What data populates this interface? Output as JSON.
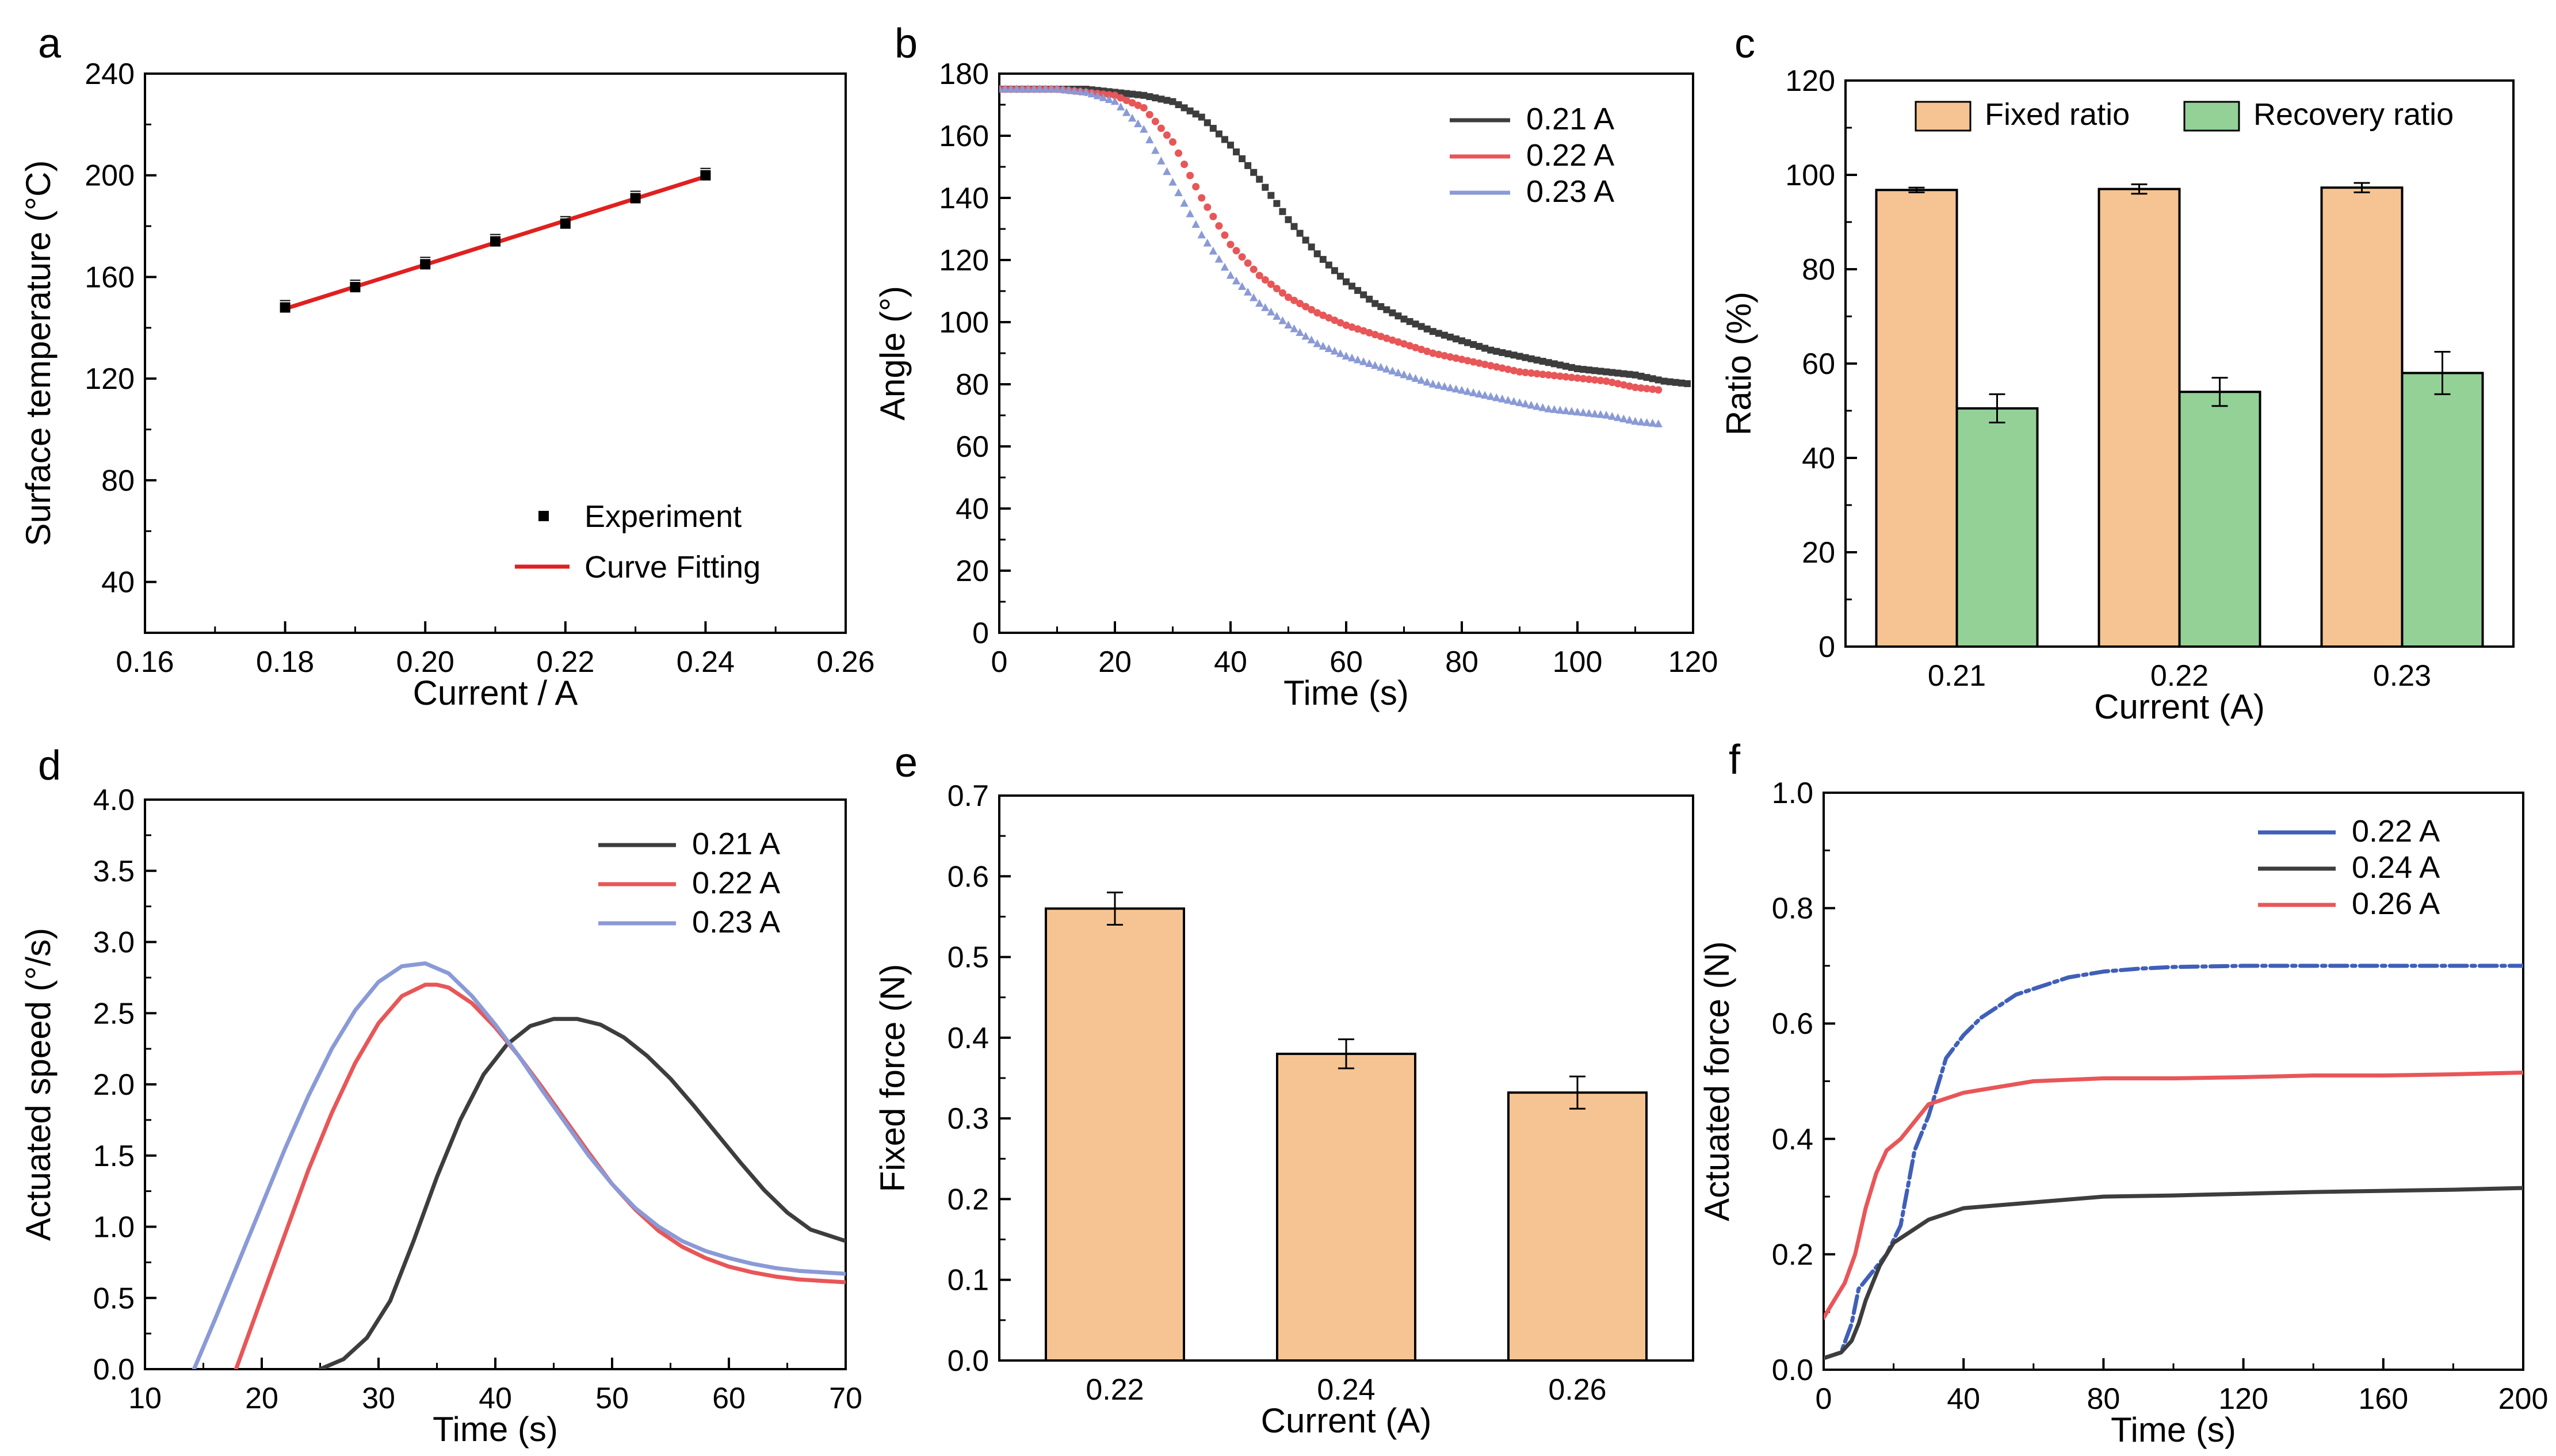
{
  "colors": {
    "black": "#000000",
    "dark": "#3d3d3d",
    "red": "#e85658",
    "blue": "#8a9ad6",
    "blue_f": "#3f5fb8",
    "orange": "#f6c492",
    "green": "#93d197"
  },
  "chart_data": [
    {
      "id": "a",
      "type": "scatter",
      "panel_label": "a",
      "xlabel": "Current / A",
      "ylabel": "Surface temperature  (°C)",
      "xlim": [
        0.16,
        0.26
      ],
      "ylim": [
        20,
        240
      ],
      "xticks": [
        0.16,
        0.18,
        0.2,
        0.22,
        0.24,
        0.26
      ],
      "xtick_labels": [
        "0.16",
        "0.18",
        "0.20",
        "0.22",
        "0.24",
        "0.26"
      ],
      "yticks": [
        40,
        80,
        120,
        160,
        200,
        240
      ],
      "ytick_labels": [
        "40",
        "80",
        "120",
        "160",
        "200",
        "240"
      ],
      "series": [
        {
          "name": "Experiment",
          "mode": "markers",
          "color": "#000000",
          "x": [
            0.18,
            0.19,
            0.2,
            0.21,
            0.22,
            0.23,
            0.24
          ],
          "y": [
            148,
            156,
            165,
            174,
            181,
            191,
            200
          ]
        },
        {
          "name": "Curve Fitting",
          "mode": "line",
          "color": "#e02020",
          "x": [
            0.18,
            0.24
          ],
          "y": [
            147.5,
            199.5
          ]
        }
      ]
    },
    {
      "id": "b",
      "type": "scatter",
      "panel_label": "b",
      "xlabel": "Time (s)",
      "ylabel": "Angle (°)",
      "xlim": [
        0,
        120
      ],
      "ylim": [
        0,
        180
      ],
      "xticks": [
        0,
        20,
        40,
        60,
        80,
        100,
        120
      ],
      "xtick_labels": [
        "0",
        "20",
        "40",
        "60",
        "80",
        "100",
        "120"
      ],
      "yticks": [
        0,
        20,
        40,
        60,
        80,
        100,
        120,
        140,
        160,
        180
      ],
      "ytick_labels": [
        "0",
        "20",
        "40",
        "60",
        "80",
        "100",
        "120",
        "140",
        "160",
        "180"
      ],
      "series": [
        {
          "name": "0.21 A",
          "color": "#3d3d3d",
          "x": [
            0,
            5,
            10,
            15,
            20,
            25,
            30,
            35,
            40,
            45,
            50,
            55,
            60,
            65,
            70,
            75,
            80,
            85,
            90,
            95,
            100,
            105,
            110,
            115,
            120
          ],
          "y": [
            175,
            175,
            175,
            175,
            174,
            173,
            171,
            166,
            157,
            146,
            133,
            122,
            113,
            106,
            101,
            97,
            94,
            91,
            89,
            87,
            85,
            84,
            83,
            81,
            80
          ]
        },
        {
          "name": "0.22 A",
          "color": "#e85658",
          "x": [
            0,
            5,
            10,
            15,
            20,
            25,
            30,
            35,
            40,
            45,
            50,
            55,
            60,
            65,
            70,
            75,
            80,
            85,
            90,
            95,
            100,
            105,
            110,
            115
          ],
          "y": [
            175,
            175,
            175,
            174,
            173,
            169,
            158,
            140,
            125,
            115,
            108,
            103,
            99,
            96,
            93,
            90,
            88,
            86,
            84,
            83,
            82,
            81,
            79,
            78
          ]
        },
        {
          "name": "0.23 A",
          "color": "#8a9ad6",
          "x": [
            0,
            5,
            10,
            15,
            20,
            25,
            30,
            35,
            40,
            45,
            50,
            55,
            60,
            65,
            70,
            75,
            80,
            85,
            90,
            95,
            100,
            105,
            110,
            115
          ],
          "y": [
            175,
            175,
            175,
            174,
            171,
            162,
            145,
            128,
            115,
            106,
            99,
            93,
            89,
            86,
            83,
            80,
            78,
            76,
            74,
            72,
            71,
            70,
            68,
            67
          ]
        }
      ]
    },
    {
      "id": "c",
      "type": "bar",
      "panel_label": "c",
      "xlabel": "Current (A)",
      "ylabel": "Ratio (%)",
      "ylim": [
        0,
        120
      ],
      "yticks": [
        0,
        20,
        40,
        60,
        80,
        100,
        120
      ],
      "ytick_labels": [
        "0",
        "20",
        "40",
        "60",
        "80",
        "100",
        "120"
      ],
      "categories": [
        "0.21",
        "0.22",
        "0.23"
      ],
      "series": [
        {
          "name": "Fixed ratio",
          "color": "#f6c492",
          "values": [
            96.8,
            97,
            97.3
          ],
          "errors": [
            0.5,
            1,
            1
          ]
        },
        {
          "name": "Recovery ratio",
          "color": "#93d197",
          "values": [
            50.5,
            54,
            58
          ],
          "errors": [
            3,
            3,
            4.5
          ]
        }
      ]
    },
    {
      "id": "d",
      "type": "line",
      "panel_label": "d",
      "xlabel": "Time (s)",
      "ylabel": "Actuated speed (°/s)",
      "xlim": [
        10,
        70
      ],
      "ylim": [
        0,
        4
      ],
      "xticks": [
        10,
        20,
        30,
        40,
        50,
        60,
        70
      ],
      "xtick_labels": [
        "10",
        "20",
        "30",
        "40",
        "50",
        "60",
        "70"
      ],
      "yticks": [
        0,
        0.5,
        1,
        1.5,
        2,
        2.5,
        3,
        3.5,
        4
      ],
      "ytick_labels": [
        "0.0",
        "0.5",
        "1.0",
        "1.5",
        "2.0",
        "2.5",
        "3.0",
        "3.5",
        "4.0"
      ],
      "series": [
        {
          "name": "0.21 A",
          "color": "#3d3d3d",
          "x": [
            25,
            27,
            29,
            31,
            33,
            35,
            37,
            39,
            41,
            43,
            45,
            47,
            49,
            51,
            53,
            55,
            57,
            59,
            61,
            63,
            65,
            67,
            70
          ],
          "y": [
            0,
            0.07,
            0.22,
            0.48,
            0.9,
            1.35,
            1.75,
            2.07,
            2.28,
            2.41,
            2.46,
            2.46,
            2.42,
            2.33,
            2.2,
            2.04,
            1.85,
            1.65,
            1.45,
            1.26,
            1.1,
            0.98,
            0.9
          ]
        },
        {
          "name": "0.22 A",
          "color": "#e85658",
          "x": [
            17.8,
            20,
            22,
            24,
            26,
            28,
            30,
            32,
            34,
            35,
            36,
            38,
            40,
            42,
            44,
            46,
            48,
            50,
            52,
            54,
            56,
            58,
            60,
            62,
            64,
            66,
            68,
            70
          ],
          "y": [
            0,
            0.5,
            0.95,
            1.4,
            1.8,
            2.15,
            2.43,
            2.62,
            2.7,
            2.7,
            2.68,
            2.57,
            2.4,
            2.2,
            1.98,
            1.75,
            1.52,
            1.3,
            1.12,
            0.97,
            0.86,
            0.78,
            0.72,
            0.68,
            0.65,
            0.63,
            0.62,
            0.61
          ]
        },
        {
          "name": "0.23 A",
          "color": "#8a9ad6",
          "x": [
            14.2,
            16,
            18,
            20,
            22,
            24,
            26,
            28,
            30,
            32,
            34,
            36,
            38,
            40,
            42,
            44,
            46,
            48,
            50,
            52,
            54,
            56,
            58,
            60,
            62,
            64,
            66,
            68,
            70
          ],
          "y": [
            0,
            0.35,
            0.75,
            1.15,
            1.55,
            1.92,
            2.25,
            2.52,
            2.72,
            2.83,
            2.85,
            2.78,
            2.62,
            2.42,
            2.2,
            1.96,
            1.73,
            1.5,
            1.3,
            1.13,
            1.0,
            0.9,
            0.83,
            0.78,
            0.74,
            0.71,
            0.69,
            0.68,
            0.67
          ]
        }
      ]
    },
    {
      "id": "e",
      "type": "bar",
      "panel_label": "e",
      "xlabel": "Current (A)",
      "ylabel": "Fixed force (N)",
      "ylim": [
        0,
        0.7
      ],
      "yticks": [
        0,
        0.1,
        0.2,
        0.3,
        0.4,
        0.5,
        0.6,
        0.7
      ],
      "ytick_labels": [
        "0.0",
        "0.1",
        "0.2",
        "0.3",
        "0.4",
        "0.5",
        "0.6",
        "0.7"
      ],
      "categories": [
        "0.22",
        "0.24",
        "0.26"
      ],
      "series": [
        {
          "name": "Fixed force",
          "color": "#f6c492",
          "values": [
            0.56,
            0.38,
            0.332
          ],
          "errors": [
            0.02,
            0.018,
            0.02
          ]
        }
      ]
    },
    {
      "id": "f",
      "type": "line",
      "panel_label": "f",
      "xlabel": "Time (s)",
      "ylabel": "Actuated force (N)",
      "xlim": [
        0,
        200
      ],
      "ylim": [
        0,
        1
      ],
      "xticks": [
        0,
        40,
        80,
        120,
        160,
        200
      ],
      "xtick_labels": [
        "0",
        "40",
        "80",
        "120",
        "160",
        "200"
      ],
      "yticks": [
        0,
        0.2,
        0.4,
        0.6,
        0.8,
        1
      ],
      "ytick_labels": [
        "0.0",
        "0.2",
        "0.4",
        "0.6",
        "0.8",
        "1.0"
      ],
      "series": [
        {
          "name": "0.22 A",
          "color": "#3f5fb8",
          "x": [
            0,
            5,
            8,
            10,
            14,
            18,
            22,
            26,
            30,
            35,
            40,
            45,
            50,
            55,
            60,
            70,
            80,
            90,
            100,
            120,
            140,
            160,
            180,
            200
          ],
          "y": [
            0.02,
            0.03,
            0.08,
            0.14,
            0.17,
            0.2,
            0.25,
            0.38,
            0.44,
            0.54,
            0.58,
            0.61,
            0.63,
            0.65,
            0.66,
            0.68,
            0.69,
            0.695,
            0.698,
            0.7,
            0.7,
            0.7,
            0.7,
            0.7
          ]
        },
        {
          "name": "0.24 A",
          "color": "#3d3d3d",
          "x": [
            0,
            5,
            8,
            10,
            12,
            14,
            16,
            18,
            20,
            25,
            30,
            35,
            40,
            50,
            60,
            80,
            100,
            120,
            140,
            160,
            180,
            200
          ],
          "y": [
            0.02,
            0.03,
            0.05,
            0.08,
            0.12,
            0.15,
            0.18,
            0.2,
            0.22,
            0.24,
            0.26,
            0.27,
            0.28,
            0.285,
            0.29,
            0.3,
            0.302,
            0.305,
            0.308,
            0.31,
            0.312,
            0.315
          ]
        },
        {
          "name": "0.26 A",
          "color": "#e85658",
          "x": [
            0,
            3,
            6,
            9,
            12,
            15,
            18,
            22,
            26,
            30,
            35,
            40,
            50,
            60,
            80,
            100,
            120,
            140,
            160,
            180,
            200
          ],
          "y": [
            0.09,
            0.12,
            0.15,
            0.2,
            0.28,
            0.34,
            0.38,
            0.4,
            0.43,
            0.46,
            0.47,
            0.48,
            0.49,
            0.5,
            0.505,
            0.505,
            0.507,
            0.51,
            0.51,
            0.512,
            0.515
          ]
        }
      ]
    }
  ]
}
